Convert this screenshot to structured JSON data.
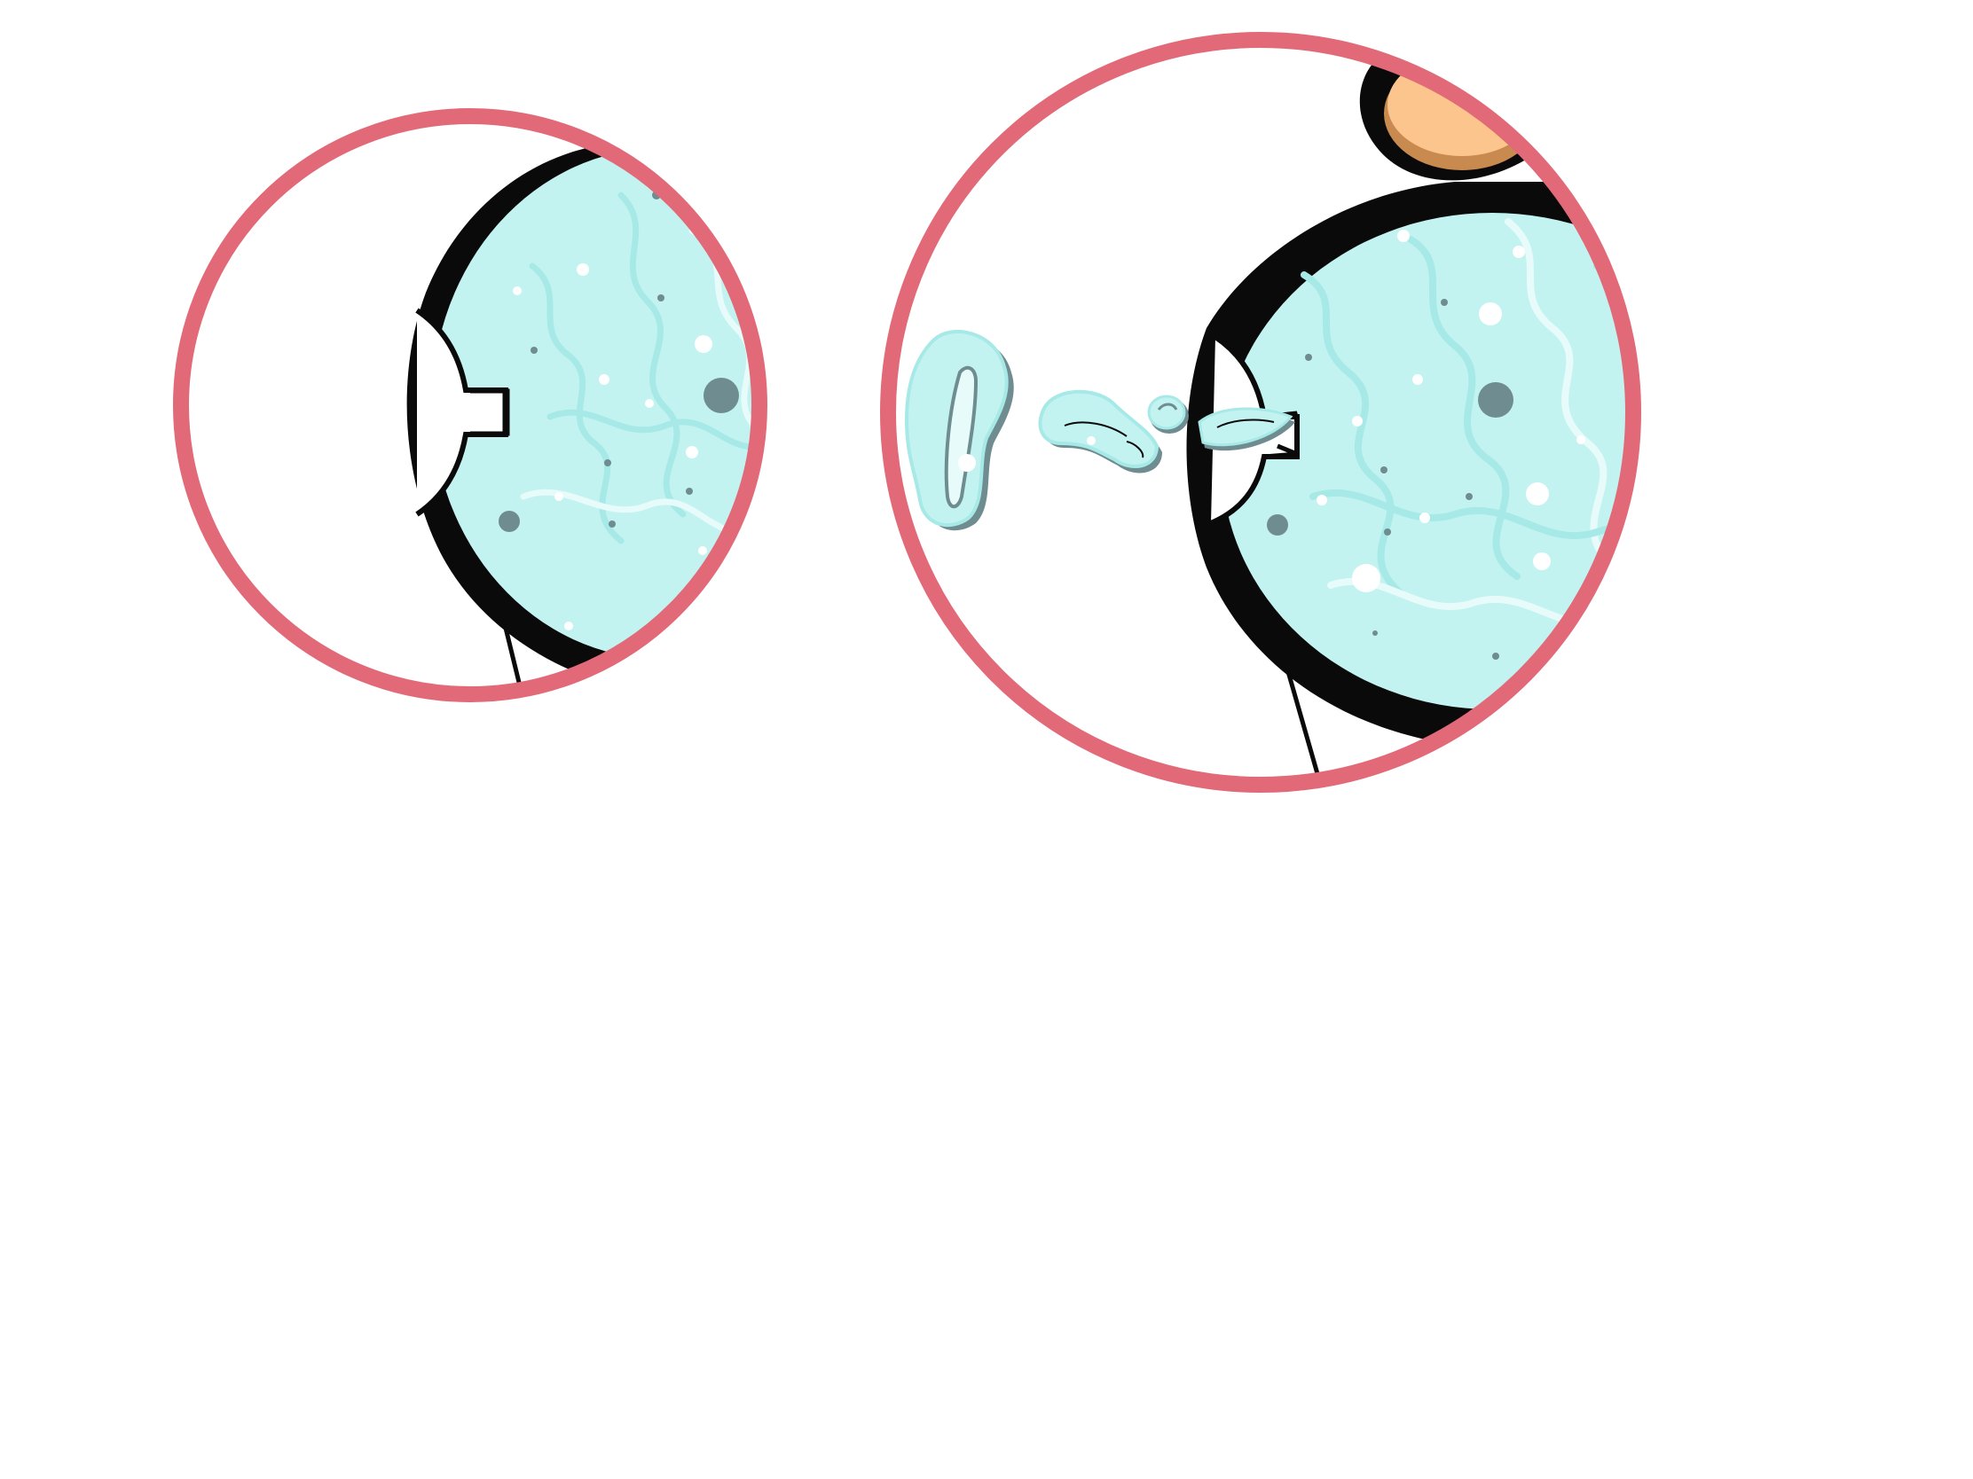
{
  "colors": {
    "background": "#ffffff",
    "frame_ring": "#e26977",
    "outline": "#0a0a0a",
    "fluid_light": "#c2f3f1",
    "fluid_swirl": "#a6e9e6",
    "fluid_highlight": "#e6fbfa",
    "speck_dark": "#6f8c90",
    "speck_light": "#ffffff",
    "head_skin": "#fcc58e",
    "head_shade": "#c88a4e"
  },
  "panels": [
    {
      "icon": "bulb-syringe-closed-icon",
      "state": "closed-tip"
    },
    {
      "icon": "bulb-syringe-squirting-icon",
      "state": "expelling-droplets"
    }
  ],
  "droplets": {
    "icon": "water-droplets-icon",
    "count": 3
  }
}
